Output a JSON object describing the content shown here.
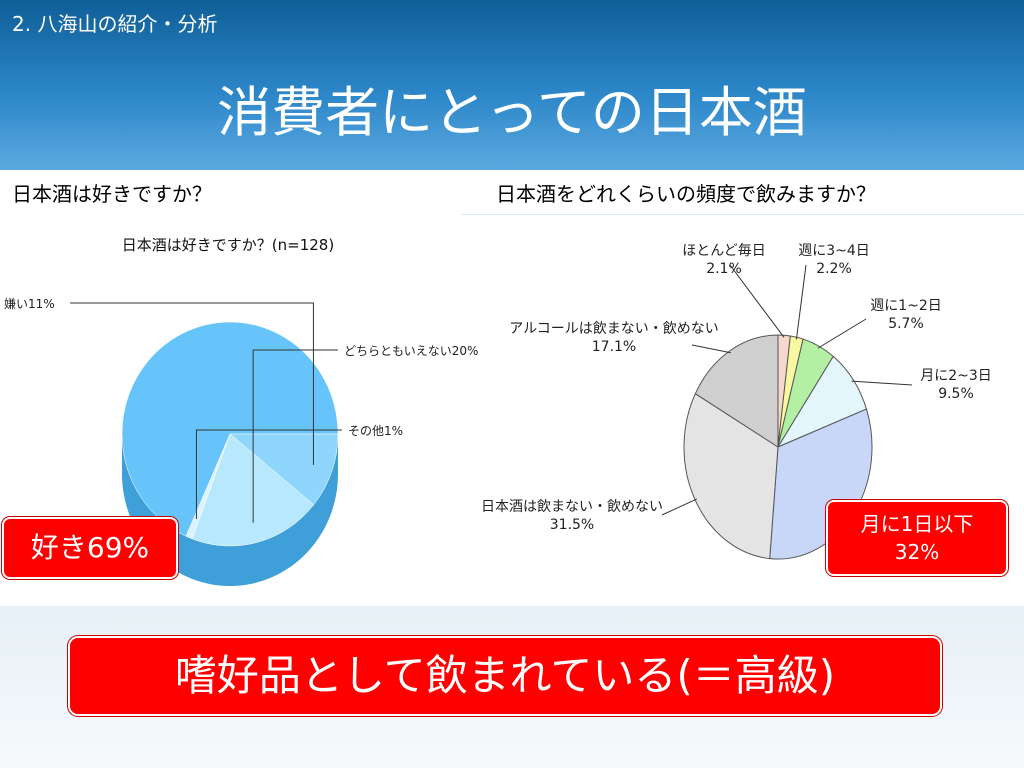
{
  "header": {
    "section_label": "2. 八海山の紹介・分析",
    "title": "消費者にとっての日本酒"
  },
  "left_panel": {
    "question": "日本酒は好きですか？",
    "callout": "好き69%"
  },
  "right_panel": {
    "question": "日本酒をどれくらいの頻度で飲みますか？",
    "callout_line1": "月に1日以下",
    "callout_line2": "32%"
  },
  "conclusion": "嗜好品として飲まれている(＝高級)",
  "chart_data": [
    {
      "type": "pie",
      "title": "日本酒は好きですか？(n=128)",
      "slices": [
        {
          "label": "好き",
          "value": 69,
          "color": "#66c4fa"
        },
        {
          "label": "嫌い11%",
          "value": 11,
          "color": "#8ed6fc"
        },
        {
          "label": "どちらともいえない20%",
          "value": 20,
          "color": "#b8e8fd"
        },
        {
          "label": "その他1%",
          "value": 1,
          "color": "#dcf3fe"
        }
      ]
    },
    {
      "type": "pie",
      "title": "",
      "slices": [
        {
          "label": "ほとんど毎日",
          "pct": "2.1%",
          "value": 2.1,
          "color": "#f6d8cc"
        },
        {
          "label": "週に3~4日",
          "pct": "2.2%",
          "value": 2.2,
          "color": "#f8f8a0"
        },
        {
          "label": "週に1~2日",
          "pct": "5.7%",
          "value": 5.7,
          "color": "#b4f0a4"
        },
        {
          "label": "月に2~3日",
          "pct": "9.5%",
          "value": 9.5,
          "color": "#e2f6fb"
        },
        {
          "label": "月に1日以下",
          "pct": "32%",
          "value": 31.9,
          "color": "#c8d6f8"
        },
        {
          "label": "日本酒は飲まない・飲めない",
          "pct": "31.5%",
          "value": 31.5,
          "color": "#e4e4e4"
        },
        {
          "label": "アルコールは飲まない・飲めない",
          "pct": "17.1%",
          "value": 17.1,
          "color": "#cfcfcf"
        }
      ]
    }
  ]
}
